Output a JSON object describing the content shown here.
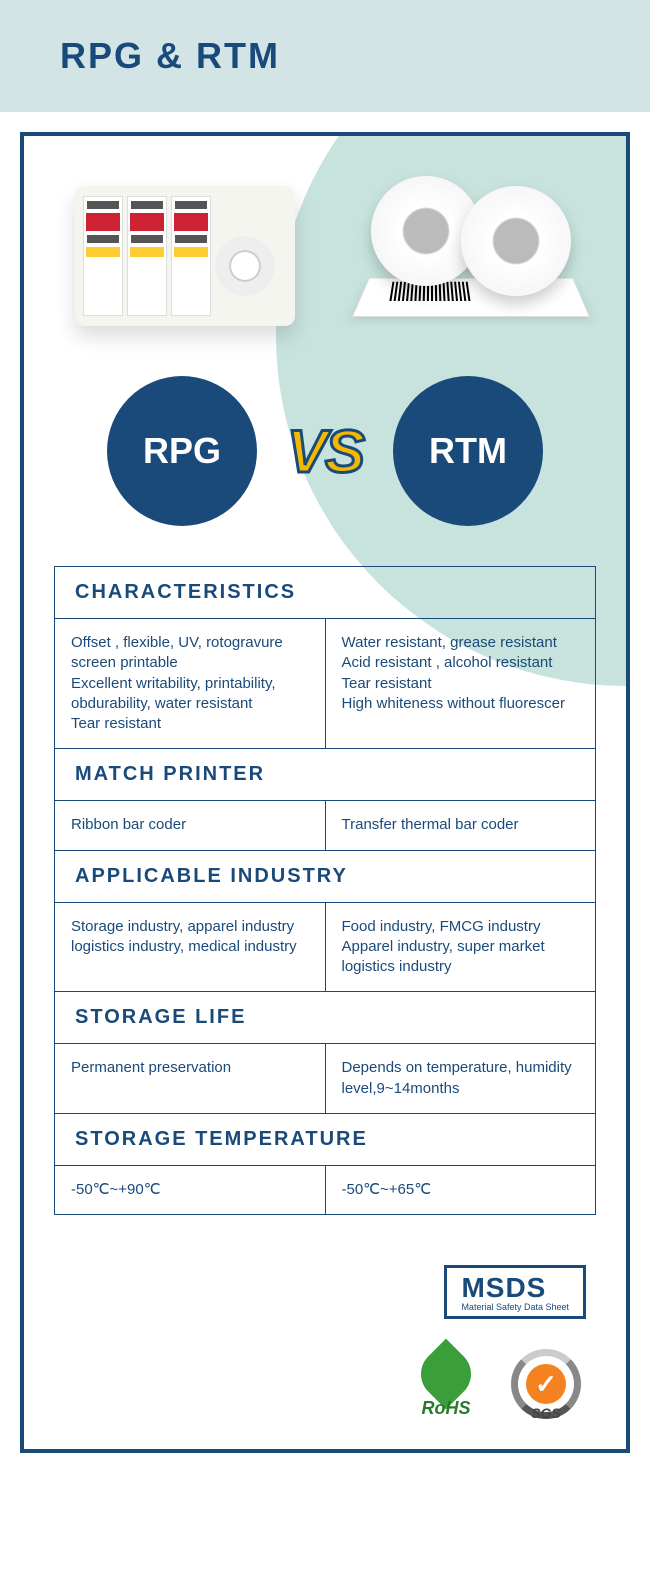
{
  "header": {
    "title": "RPG & RTM"
  },
  "colors": {
    "primary": "#1a4a7a",
    "header_band": "#d2e4e5",
    "bg_circle": "#c8e3de",
    "vs_fill": "#f5b800",
    "rohs_green": "#3a9e3a",
    "sgs_orange": "#f58220"
  },
  "vs": {
    "left_label": "RPG",
    "vs_text": "VS",
    "right_label": "RTM"
  },
  "sections": [
    {
      "title": "CHARACTERISTICS",
      "left": "Offset , flexible, UV, rotogravure screen printable\nExcellent writability, printability, obdurability, water resistant\nTear resistant",
      "right": "Water resistant, grease resistant\nAcid resistant , alcohol resistant\nTear resistant\nHigh whiteness without fluorescer"
    },
    {
      "title": "MATCH PRINTER",
      "left": "Ribbon bar coder",
      "right": "Transfer thermal bar coder"
    },
    {
      "title": "APPLICABLE INDUSTRY",
      "left": "Storage industry, apparel industry logistics industry, medical industry",
      "right": "Food  industry, FMCG industry\nApparel industry, super market logistics industry"
    },
    {
      "title": "STORAGE LIFE",
      "left": "Permanent preservation",
      "right": "Depends on temperature, humidity  level,9~14months"
    },
    {
      "title": "STORAGE  TEMPERATURE",
      "left": "-50℃~+90℃",
      "right": "-50℃~+65℃"
    }
  ],
  "badges": {
    "msds_big": "MSDS",
    "msds_small": "Material Safety Data Sheet",
    "rohs": "RoHS",
    "sgs": "SGS"
  }
}
